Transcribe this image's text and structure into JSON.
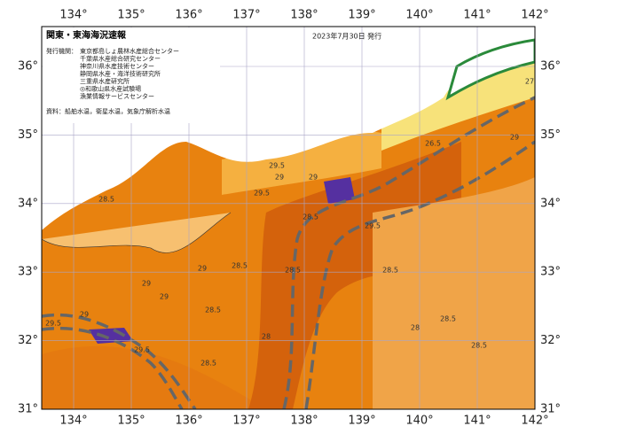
{
  "header": {
    "title": "関東・東海海況速報",
    "date": "2023年7月30日 発行"
  },
  "issuers": {
    "label": "発行機関：",
    "names": [
      "東京都島しょ農林水産総合センター",
      "千葉県水産総合研究センター",
      "神奈川県水産技術センター",
      "静岡県水産・海洋技術研究所",
      "三重県水産研究所",
      "◎和歌山県水産試験場",
      "漁業情報サービスセンター"
    ]
  },
  "source": "資料：船舶水温，衛星水温，気象庁解析水温",
  "map": {
    "lon_ticks": [
      {
        "value": 134,
        "label": "134°"
      },
      {
        "value": 135,
        "label": "135°"
      },
      {
        "value": 136,
        "label": "136°"
      },
      {
        "value": 137,
        "label": "137°"
      },
      {
        "value": 138,
        "label": "138°"
      },
      {
        "value": 139,
        "label": "139°"
      },
      {
        "value": 140,
        "label": "140°"
      },
      {
        "value": 141,
        "label": "141°"
      },
      {
        "value": 142,
        "label": "142°"
      }
    ],
    "lat_ticks": [
      {
        "value": 31,
        "label": "31°"
      },
      {
        "value": 32,
        "label": "32°"
      },
      {
        "value": 33,
        "label": "33°"
      },
      {
        "value": 34,
        "label": "34°"
      },
      {
        "value": 35,
        "label": "35°"
      },
      {
        "value": 36,
        "label": "36°"
      }
    ],
    "contour_labels": [
      29.5,
      29,
      28.5,
      29.5,
      29,
      28.5,
      28.5,
      29.5,
      28.5,
      28,
      29,
      29.5,
      28.5,
      28.5,
      29,
      28.5,
      26.5,
      29,
      27,
      28.5,
      29.5,
      29,
      28.5,
      29,
      28
    ]
  }
}
